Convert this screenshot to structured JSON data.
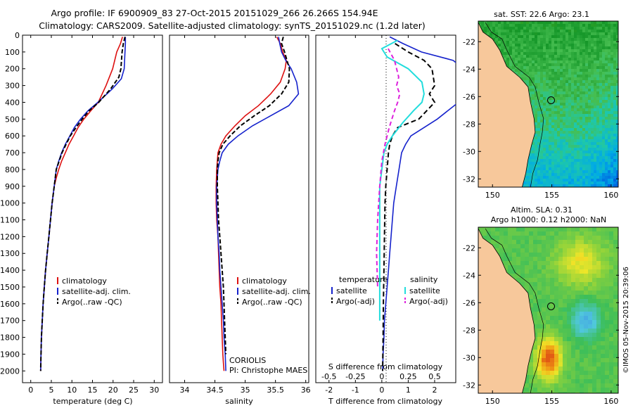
{
  "header": {
    "line1": "Argo profile: IF 6900909_83 27-Oct-2015 20151029_266 26.266S 154.94E",
    "line2": "Climatology: CARS2009. Satellite-adjusted climatology: synTS_20151029.nc (1.2d later)"
  },
  "colors": {
    "climatology": "#dd1111",
    "satellite": "#1522cc",
    "argo": "#000000",
    "s_satellite": "#22dddd",
    "s_argo": "#dd22dd",
    "land": "#f7c89b"
  },
  "chart_data": [
    {
      "type": "line",
      "xlabel": "temperature (deg C)",
      "ylabel": "",
      "xlim": [
        -2,
        32
      ],
      "ylim": [
        2070,
        0
      ],
      "xticks": [
        "0",
        "5",
        "10",
        "15",
        "20",
        "25",
        "30"
      ],
      "yticks": [
        "0",
        "100",
        "200",
        "300",
        "400",
        "500",
        "600",
        "700",
        "800",
        "900",
        "1000",
        "1100",
        "1200",
        "1300",
        "1400",
        "1500",
        "1600",
        "1700",
        "1800",
        "1900",
        "2000"
      ],
      "grid": false,
      "legend": {
        "placement": "lower-left",
        "entries": [
          "climatology",
          "satellite-adj. clim.",
          "Argo(..raw -QC)"
        ]
      },
      "series": [
        {
          "name": "climatology",
          "x": [
            22.3,
            21.8,
            20.9,
            19.9,
            18.3,
            16.4,
            14.6,
            12.9,
            11.5,
            10.4,
            9.3,
            8.4,
            7.5,
            6.8,
            6.2,
            5.7,
            5.2,
            4.8,
            4.4,
            4.0,
            3.6,
            3.3,
            3.0,
            2.8,
            2.6,
            2.5,
            2.4
          ],
          "y": [
            10,
            50,
            100,
            200,
            300,
            400,
            450,
            500,
            550,
            600,
            650,
            700,
            750,
            800,
            850,
            900,
            1000,
            1100,
            1200,
            1300,
            1400,
            1500,
            1600,
            1700,
            1800,
            1900,
            2000
          ]
        },
        {
          "name": "satellite-adj. clim.",
          "x": [
            23.0,
            23.0,
            22.9,
            22.7,
            22.0,
            19.8,
            16.3,
            13.9,
            12.1,
            10.6,
            9.5,
            8.4,
            7.5,
            6.8,
            6.2,
            5.7,
            5.2,
            4.8,
            4.4,
            4.0,
            3.6,
            3.3,
            3.0,
            2.8,
            2.6,
            2.5,
            2.4
          ],
          "y": [
            10,
            50,
            100,
            200,
            260,
            320,
            400,
            450,
            500,
            550,
            600,
            650,
            700,
            750,
            800,
            900,
            1000,
            1100,
            1200,
            1300,
            1400,
            1500,
            1600,
            1700,
            1800,
            1900,
            2000
          ]
        },
        {
          "name": "Argo(..raw -QC)",
          "x": [
            22.9,
            22.5,
            22.2,
            21.9,
            21.4,
            19.4,
            16.5,
            14.2,
            12.5,
            11.0,
            9.6,
            8.6,
            7.6,
            6.9,
            6.2,
            5.7,
            5.2,
            4.8,
            4.4,
            4.0,
            3.6,
            3.3,
            3.0,
            2.8,
            2.6,
            2.5,
            2.4
          ],
          "y": [
            10,
            50,
            100,
            200,
            250,
            320,
            400,
            450,
            500,
            550,
            600,
            650,
            700,
            750,
            800,
            900,
            1000,
            1100,
            1200,
            1300,
            1400,
            1500,
            1600,
            1700,
            1800,
            1900,
            2000
          ]
        }
      ]
    },
    {
      "type": "line",
      "xlabel": "salinity",
      "ylabel": "",
      "xlim": [
        33.75,
        36.05
      ],
      "ylim": [
        2070,
        0
      ],
      "xticks": [
        "34",
        "34.5",
        "35",
        "35.5",
        "36"
      ],
      "grid": false,
      "legend": {
        "placement": "lower-center",
        "entries": [
          "climatology",
          "satellite-adj. clim.",
          "Argo(..raw -QC)"
        ]
      },
      "annotations": [
        "CORIOLIS",
        "PI: Christophe MAES"
      ],
      "series": [
        {
          "name": "climatology",
          "x": [
            35.52,
            35.58,
            35.62,
            35.68,
            35.66,
            35.58,
            35.42,
            35.22,
            35.0,
            34.83,
            34.68,
            34.6,
            34.55,
            34.53,
            34.52,
            34.52,
            34.53,
            34.55,
            34.56,
            34.57,
            34.58,
            34.6,
            34.61,
            34.62,
            34.63,
            34.64,
            34.65
          ],
          "y": [
            10,
            50,
            100,
            150,
            200,
            280,
            350,
            420,
            480,
            540,
            600,
            650,
            700,
            800,
            900,
            1000,
            1100,
            1200,
            1300,
            1400,
            1500,
            1600,
            1700,
            1800,
            1900,
            1950,
            2000
          ]
        },
        {
          "name": "satellite-adj. clim.",
          "x": [
            35.55,
            35.57,
            35.6,
            35.67,
            35.76,
            35.85,
            35.88,
            35.72,
            35.42,
            35.12,
            34.88,
            34.72,
            34.62,
            34.58,
            34.55,
            34.53,
            34.53,
            34.54,
            34.55,
            34.57,
            34.58,
            34.6,
            34.62,
            34.64,
            34.65,
            34.67,
            34.68
          ],
          "y": [
            10,
            50,
            100,
            150,
            200,
            280,
            350,
            420,
            480,
            540,
            600,
            650,
            700,
            750,
            800,
            900,
            1000,
            1100,
            1200,
            1300,
            1400,
            1500,
            1600,
            1700,
            1800,
            1900,
            2000
          ]
        },
        {
          "name": "Argo(..raw -QC)",
          "x": [
            35.63,
            35.6,
            35.65,
            35.69,
            35.73,
            35.72,
            35.6,
            35.4,
            35.15,
            34.92,
            34.75,
            34.63,
            34.57,
            34.55,
            34.54,
            34.54,
            34.55,
            34.56,
            34.58,
            34.6,
            34.62,
            34.64,
            34.65,
            34.66,
            34.67,
            34.68
          ],
          "y": [
            10,
            50,
            100,
            150,
            200,
            280,
            350,
            420,
            480,
            540,
            600,
            650,
            700,
            750,
            800,
            900,
            1000,
            1100,
            1200,
            1300,
            1400,
            1500,
            1600,
            1700,
            1800,
            1900
          ]
        }
      ]
    },
    {
      "type": "line",
      "xlabel": "T difference from climatology",
      "ylabel": "",
      "xlim": [
        -2.5,
        2.8
      ],
      "ylim": [
        2070,
        0
      ],
      "xticks": [
        "-2",
        "-1",
        "0",
        "1",
        "2"
      ],
      "secondary_xlabel": "S difference from climatology",
      "secondary_xticks": [
        "-0.5",
        "-0.25",
        "0",
        "0.25",
        "0.5"
      ],
      "secondary_xlim": [
        -0.625,
        0.7
      ],
      "grid": false,
      "legend": {
        "placement": "lower-center",
        "titles": [
          "temperature",
          "salinity"
        ],
        "entries": [
          "satellite",
          "Argo(-adj)",
          "satellite",
          "Argo(-adj)"
        ]
      },
      "series": [
        {
          "name": "satellite",
          "axis": "T",
          "x": [
            0.3,
            0.8,
            1.5,
            2.7,
            3.1,
            3.2,
            2.9,
            2.5,
            2.1,
            1.6,
            1.1,
            0.9,
            0.75,
            0.65,
            0.55,
            0.45,
            0.35,
            0.3,
            0.25,
            0.2,
            0.15,
            0.1,
            0.08,
            0.05,
            0.03
          ],
          "y": [
            10,
            50,
            100,
            150,
            200,
            300,
            400,
            450,
            500,
            550,
            600,
            650,
            700,
            800,
            900,
            1000,
            1200,
            1300,
            1400,
            1500,
            1600,
            1700,
            1800,
            1900,
            2000
          ]
        },
        {
          "name": "Argo(-adj)",
          "axis": "T",
          "x": [
            0.5,
            1.0,
            1.6,
            1.9,
            2.0,
            1.8,
            2.0,
            1.7,
            1.4,
            0.6,
            0.4,
            0.3,
            0.25,
            0.2,
            0.15,
            0.12,
            0.1,
            0.08,
            0.06,
            0.05,
            0.03
          ],
          "y": [
            50,
            100,
            150,
            200,
            300,
            350,
            400,
            450,
            500,
            550,
            600,
            650,
            700,
            800,
            900,
            1000,
            1200,
            1400,
            1600,
            1800,
            2000
          ]
        },
        {
          "name": "satellite",
          "axis": "S",
          "x": [
            0.15,
            0.0,
            0.05,
            0.25,
            0.38,
            0.4,
            0.38,
            0.3,
            0.2,
            0.1,
            0.05,
            0.02,
            0.0,
            -0.02,
            -0.02,
            -0.02,
            -0.02,
            -0.02,
            -0.02
          ],
          "y": [
            30,
            80,
            130,
            200,
            280,
            350,
            400,
            450,
            520,
            600,
            650,
            700,
            800,
            900,
            1000,
            1200,
            1400,
            1600,
            1700
          ]
        },
        {
          "name": "Argo(-adj)",
          "axis": "S",
          "x": [
            0.06,
            0.12,
            0.16,
            0.14,
            0.17,
            0.15,
            0.12,
            0.07,
            0.03,
            0.0,
            -0.02,
            -0.04,
            -0.05,
            -0.04
          ],
          "y": [
            80,
            150,
            250,
            300,
            350,
            400,
            450,
            550,
            650,
            750,
            900,
            1100,
            1300,
            1500
          ]
        }
      ]
    },
    {
      "type": "heatmap",
      "title": "sat. SST: 22.6  Argo: 23.1",
      "xticks": [
        "150",
        "155",
        "160"
      ],
      "yticks": [
        "-22",
        "-24",
        "-26",
        "-28",
        "-30",
        "-32"
      ],
      "xlim": [
        148.8,
        160.6
      ],
      "ylim": [
        -32.6,
        -20.5
      ],
      "marker": {
        "lon": 154.94,
        "lat": -26.27
      }
    },
    {
      "type": "heatmap",
      "title": "Altim. SLA: 0.31",
      "subtitle": "Argo h1000: 0.12 h2000: NaN",
      "xticks": [
        "150",
        "155",
        "160"
      ],
      "yticks": [
        "-22",
        "-24",
        "-26",
        "-28",
        "-30",
        "-32"
      ],
      "xlim": [
        148.8,
        160.6
      ],
      "ylim": [
        -32.6,
        -20.5
      ],
      "marker": {
        "lon": 154.94,
        "lat": -26.27
      }
    }
  ],
  "side_label": "©IMOS 05-Nov-2015 20:39:06"
}
